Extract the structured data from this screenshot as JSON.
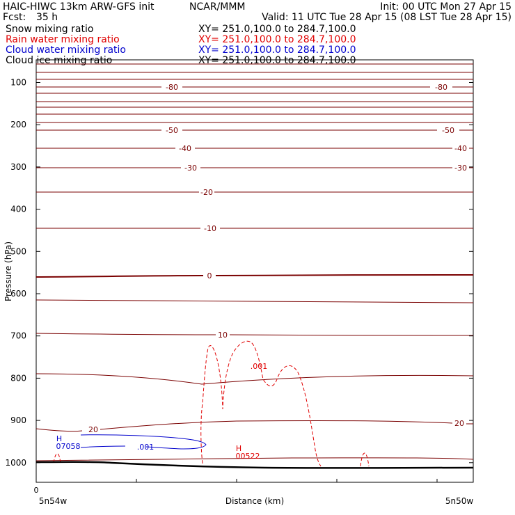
{
  "header": {
    "title_left": "HAIC-HIWC 13km ARW-GFS init",
    "org": "NCAR/MMM",
    "init": "Init: 00 UTC Mon 27 Apr 15",
    "fcst_label": "Fcst:",
    "fcst_value": "35 h",
    "valid": "Valid: 11 UTC Tue 28 Apr 15 (08 LST Tue 28 Apr 15)"
  },
  "fields": [
    {
      "name": "Snow mixing ratio",
      "xy": "XY= 251.0,100.0 to 284.7,100.0",
      "color": "#000000"
    },
    {
      "name": "Rain water mixing ratio",
      "xy": "XY= 251.0,100.0 to 284.7,100.0",
      "color": "#e00000"
    },
    {
      "name": "Cloud water mixing ratio",
      "xy": "XY= 251.0,100.0 to 284.7,100.0",
      "color": "#0000cc"
    },
    {
      "name": "Cloud ice mixing ratio",
      "xy": "XY= 251.0,100.0 to 284.7,100.0",
      "color": "#000000"
    }
  ],
  "chart_data": {
    "type": "line",
    "ylabel": "Pressure (hPa)",
    "xlabel": "Distance (km)",
    "y_ticks": [
      "100",
      "200",
      "300",
      "400",
      "500",
      "600",
      "700",
      "800",
      "900",
      "1000"
    ],
    "x_tick_zero": "0",
    "x_end_left": "5n54w",
    "x_end_right": "5n50w",
    "colors": {
      "temperature": "#7a0000",
      "rain": "#e00000",
      "cloud_water": "#0000cc",
      "terrain": "#000000"
    },
    "temperature_labels": [
      "-80",
      "-80",
      "-50",
      "-50",
      "-40",
      "-40",
      "-30",
      "-30",
      "-20",
      "-10",
      "0",
      "10",
      "20",
      "20"
    ],
    "rain_labels": [
      ".001",
      "H",
      "00522"
    ],
    "cloud_water_labels": [
      "H",
      "07058",
      ".001"
    ]
  }
}
